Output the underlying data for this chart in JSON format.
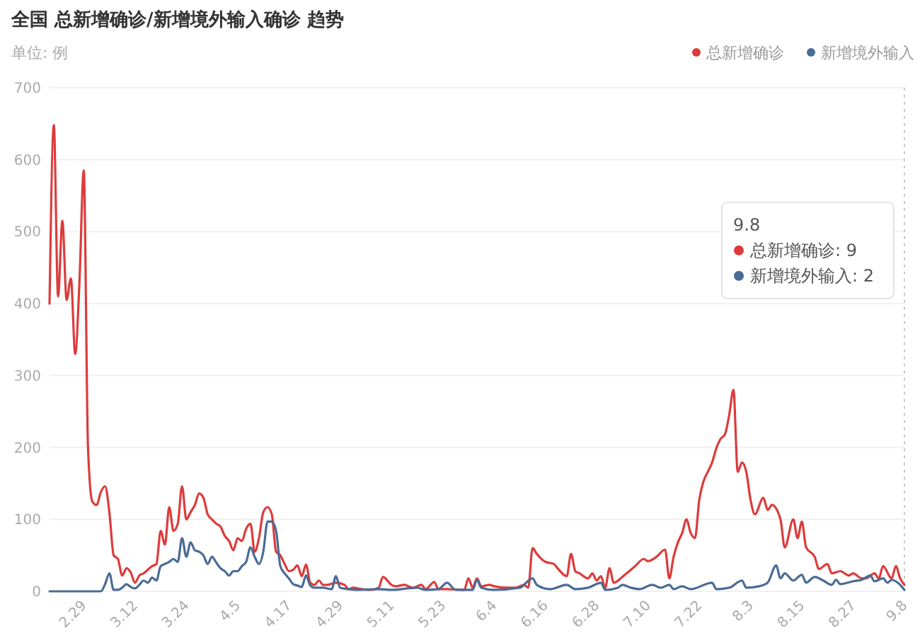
{
  "chart_data": {
    "type": "line",
    "title": "全国 总新增确诊/新增境外输入确诊 趋势",
    "ylabel": "单位: 例",
    "annotations": [
      "9.8",
      "总新增确诊: 9",
      "新增境外输入: 2"
    ],
    "xlim": [
      "--02-21",
      "--09-08"
    ],
    "xticks": [
      {
        "value": "--02-29",
        "label": "2.29"
      },
      {
        "value": "--03-12",
        "label": "3.12"
      },
      {
        "value": "--03-24",
        "label": "3.24"
      },
      {
        "value": "--04-05",
        "label": "4.5"
      },
      {
        "value": "--04-17",
        "label": "4.17"
      },
      {
        "value": "--04-29",
        "label": "4.29"
      },
      {
        "value": "--05-11",
        "label": "5.11"
      },
      {
        "value": "--05-23",
        "label": "5.23"
      },
      {
        "value": "--06-04",
        "label": "6.4"
      },
      {
        "value": "--06-16",
        "label": "6.16"
      },
      {
        "value": "--06-28",
        "label": "6.28"
      },
      {
        "value": "--07-10",
        "label": "7.10"
      },
      {
        "value": "--07-22",
        "label": "7.22"
      },
      {
        "value": "--08-03",
        "label": "8.3"
      },
      {
        "value": "--08-15",
        "label": "8.15"
      },
      {
        "value": "--08-27",
        "label": "8.27"
      },
      {
        "value": "--09-08",
        "label": "9.8"
      }
    ],
    "ylim": [
      0,
      700
    ],
    "yticks": [
      0,
      100,
      200,
      300,
      400,
      500,
      600,
      700
    ],
    "grid": "y",
    "legend": "top right",
    "ref_lines": [
      {
        "axis": "x",
        "value": "--09-08",
        "color": "#c8c8c8",
        "line_style": "dotted"
      }
    ],
    "series": [
      {
        "name": "总新增确诊",
        "color": "#dd3b3b",
        "x": [
          "--02-21",
          "--02-22",
          "--02-23",
          "--02-24",
          "--02-25",
          "--02-26",
          "--02-27",
          "--02-28",
          "--02-29",
          "--03-01",
          "--03-02",
          "--03-03",
          "--03-04",
          "--03-05",
          "--03-06",
          "--03-07",
          "--03-08",
          "--03-09",
          "--03-10",
          "--03-11",
          "--03-12",
          "--03-13",
          "--03-14",
          "--03-16",
          "--03-17",
          "--03-18",
          "--03-19",
          "--03-20",
          "--03-21",
          "--03-22",
          "--03-23",
          "--03-24",
          "--03-25",
          "--03-26",
          "--03-27",
          "--03-28",
          "--03-29",
          "--03-30",
          "--03-31",
          "--04-01",
          "--04-02",
          "--04-03",
          "--04-04",
          "--04-05",
          "--04-06",
          "--04-07",
          "--04-08",
          "--04-09",
          "--04-10",
          "--04-11",
          "--04-12",
          "--04-13",
          "--04-14",
          "--04-15",
          "--04-16",
          "--04-17",
          "--04-18",
          "--04-19",
          "--04-20",
          "--04-21",
          "--04-22",
          "--04-23",
          "--04-24",
          "--04-25",
          "--04-26",
          "--04-28",
          "--04-30",
          "--05-01",
          "--05-02",
          "--05-04",
          "--05-06",
          "--05-08",
          "--05-09",
          "--05-11",
          "--05-12",
          "--05-14",
          "--05-16",
          "--05-18",
          "--05-19",
          "--05-21",
          "--05-22",
          "--05-24",
          "--05-28",
          "--05-29",
          "--05-30",
          "--05-31",
          "--06-01",
          "--06-03",
          "--06-04",
          "--06-07",
          "--06-09",
          "--06-11",
          "--06-12",
          "--06-13",
          "--06-14",
          "--06-16",
          "--06-18",
          "--06-19",
          "--06-21",
          "--06-22",
          "--06-23",
          "--06-24",
          "--06-26",
          "--06-27",
          "--06-28",
          "--06-29",
          "--06-30",
          "--07-01",
          "--07-02",
          "--07-04",
          "--07-05",
          "--07-07",
          "--07-09",
          "--07-10",
          "--07-12",
          "--07-14",
          "--07-15",
          "--07-16",
          "--07-17",
          "--07-18",
          "--07-19",
          "--07-20",
          "--07-21",
          "--07-22",
          "--07-23",
          "--07-24",
          "--07-25",
          "--07-26",
          "--07-27",
          "--07-28",
          "--07-29",
          "--07-30",
          "--07-31",
          "--08-01",
          "--08-02",
          "--08-03",
          "--08-04",
          "--08-06",
          "--08-07",
          "--08-08",
          "--08-10",
          "--08-11",
          "--08-13",
          "--08-14",
          "--08-15",
          "--08-16",
          "--08-18",
          "--08-19",
          "--08-21",
          "--08-22",
          "--08-24",
          "--08-26",
          "--08-27",
          "--08-29",
          "--08-30",
          "--09-01",
          "--09-02",
          "--09-03",
          "--09-05",
          "--09-06",
          "--09-07",
          "--09-08"
        ],
        "values": [
          400,
          648,
          410,
          515,
          405,
          435,
          330,
          430,
          585,
          200,
          125,
          120,
          138,
          146,
          110,
          50,
          45,
          22,
          32,
          26,
          12,
          22,
          25,
          35,
          38,
          84,
          65,
          117,
          84,
          94,
          146,
          100,
          110,
          120,
          136,
          130,
          107,
          100,
          94,
          90,
          77,
          70,
          57,
          74,
          70,
          87,
          94,
          55,
          74,
          110,
          117,
          107,
          55,
          50,
          38,
          28,
          30,
          36,
          21,
          37,
          12,
          9,
          15,
          9,
          9,
          12,
          9,
          3,
          5,
          3,
          2,
          5,
          20,
          9,
          7,
          9,
          5,
          9,
          3,
          13,
          3,
          3,
          2,
          18,
          5,
          18,
          7,
          9,
          7,
          5,
          5,
          9,
          5,
          60,
          52,
          41,
          38,
          31,
          21,
          52,
          28,
          25,
          18,
          25,
          15,
          21,
          5,
          32,
          12,
          20,
          25,
          35,
          45,
          42,
          48,
          58,
          18,
          48,
          68,
          81,
          100,
          81,
          74,
          127,
          153,
          166,
          179,
          199,
          212,
          218,
          245,
          280,
          166,
          179,
          166,
          127,
          107,
          130,
          113,
          120,
          100,
          61,
          100,
          74,
          97,
          61,
          48,
          31,
          38,
          25,
          28,
          22,
          25,
          18,
          18,
          25,
          18,
          35,
          18,
          35,
          18,
          9
        ]
      },
      {
        "name": "新增境外输入",
        "color": "#4a6b95",
        "x": [
          "--02-21",
          "--03-04",
          "--03-05",
          "--03-06",
          "--03-07",
          "--03-08",
          "--03-09",
          "--03-10",
          "--03-11",
          "--03-12",
          "--03-13",
          "--03-14",
          "--03-15",
          "--03-16",
          "--03-17",
          "--03-18",
          "--03-19",
          "--03-20",
          "--03-21",
          "--03-22",
          "--03-23",
          "--03-24",
          "--03-25",
          "--03-26",
          "--03-27",
          "--03-28",
          "--03-29",
          "--03-30",
          "--03-31",
          "--04-01",
          "--04-02",
          "--04-03",
          "--04-04",
          "--04-05",
          "--04-06",
          "--04-07",
          "--04-08",
          "--04-09",
          "--04-10",
          "--04-11",
          "--04-12",
          "--04-13",
          "--04-14",
          "--04-15",
          "--04-16",
          "--04-17",
          "--04-18",
          "--04-19",
          "--04-20",
          "--04-21",
          "--04-22",
          "--04-23",
          "--04-25",
          "--04-27",
          "--04-28",
          "--04-29",
          "--05-01",
          "--05-03",
          "--05-08",
          "--05-11",
          "--05-17",
          "--05-19",
          "--05-22",
          "--05-24",
          "--05-26",
          "--05-30",
          "--05-31",
          "--06-01",
          "--06-04",
          "--06-10",
          "--06-13",
          "--06-14",
          "--06-17",
          "--06-21",
          "--06-23",
          "--06-26",
          "--06-29",
          "--06-30",
          "--07-03",
          "--07-04",
          "--07-06",
          "--07-08",
          "--07-11",
          "--07-13",
          "--07-15",
          "--07-16",
          "--07-18",
          "--07-20",
          "--07-25",
          "--07-26",
          "--07-29",
          "--08-01",
          "--08-02",
          "--08-05",
          "--08-07",
          "--08-09",
          "--08-10",
          "--08-11",
          "--08-13",
          "--08-15",
          "--08-16",
          "--08-18",
          "--08-20",
          "--08-22",
          "--08-23",
          "--08-24",
          "--08-27",
          "--08-29",
          "--08-31",
          "--09-01",
          "--09-03",
          "--09-04",
          "--09-05",
          "--09-07",
          "--09-08"
        ],
        "values": [
          0,
          0,
          10,
          25,
          2,
          2,
          5,
          10,
          6,
          4,
          9,
          15,
          12,
          19,
          15,
          35,
          38,
          41,
          45,
          41,
          74,
          48,
          68,
          57,
          55,
          50,
          38,
          48,
          40,
          32,
          28,
          22,
          28,
          28,
          35,
          41,
          61,
          48,
          38,
          55,
          97,
          97,
          84,
          35,
          25,
          18,
          10,
          8,
          6,
          22,
          8,
          5,
          5,
          3,
          21,
          5,
          3,
          2,
          3,
          2,
          5,
          2,
          3,
          12,
          2,
          2,
          16,
          5,
          2,
          5,
          18,
          9,
          3,
          9,
          3,
          5,
          12,
          2,
          5,
          9,
          5,
          3,
          9,
          5,
          9,
          3,
          7,
          3,
          12,
          3,
          5,
          15,
          5,
          7,
          12,
          36,
          18,
          25,
          15,
          23,
          12,
          20,
          15,
          9,
          16,
          10,
          14,
          16,
          22,
          14,
          18,
          12,
          16,
          9,
          2
        ]
      }
    ]
  }
}
